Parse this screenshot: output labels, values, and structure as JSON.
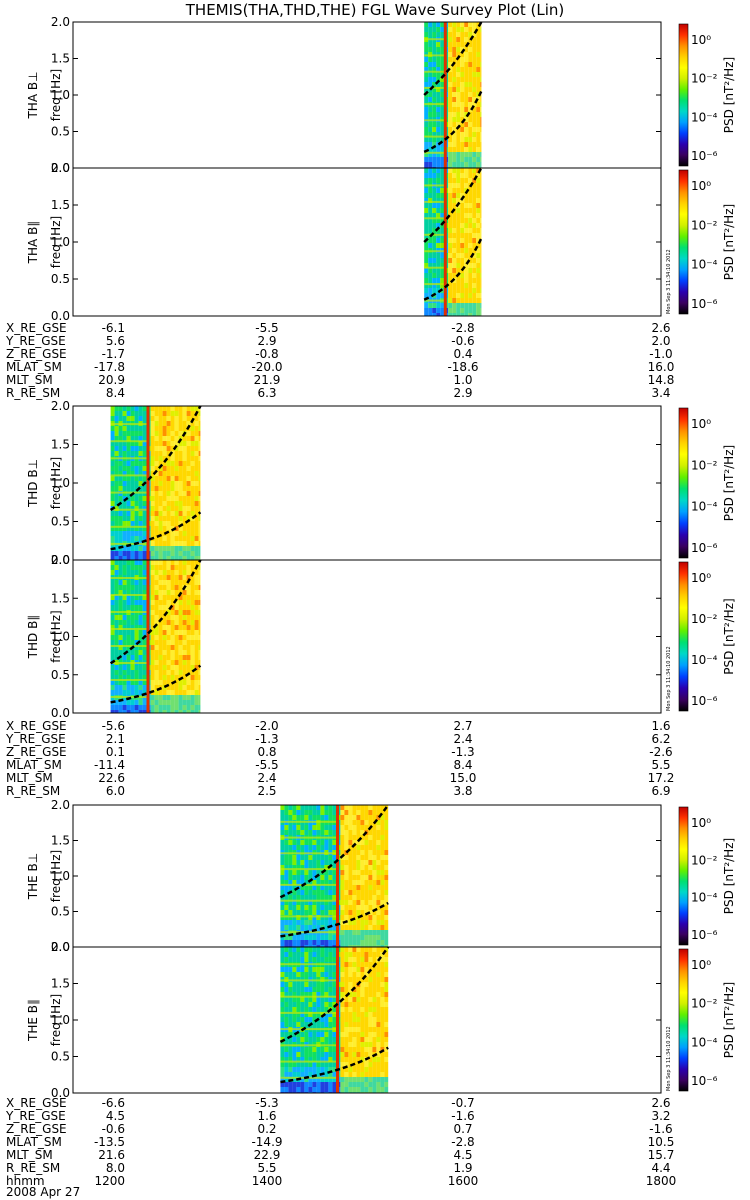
{
  "title": "THEMIS(THA,THD,THE) FGL Wave Survey Plot (Lin)",
  "colors": {
    "colorbar": [
      "#000000",
      "#3a0060",
      "#2a00b0",
      "#0040ff",
      "#00a0ff",
      "#00d8c8",
      "#00e070",
      "#60f000",
      "#d0f000",
      "#ffff00",
      "#ffd000",
      "#ff9000",
      "#ff3000",
      "#c00000"
    ],
    "dash": "#000000",
    "line": "#6688bb"
  },
  "colorbar": {
    "label": "PSD [nT²/Hz]",
    "ticks": [
      "10⁰",
      "10⁻²",
      "10⁻⁴",
      "10⁻⁶"
    ]
  },
  "stamp": "Mon Sep 3 11:34:10 2012",
  "chart_data": [
    {
      "type": "heatmap",
      "name": "THA B⊥",
      "ylabel_top": "THA B⊥",
      "ylabel_bottom": "freq [Hz]",
      "ylim": [
        0,
        2
      ],
      "yticks": [
        "0.0",
        "0.5",
        "1.0",
        "1.5",
        "2.0"
      ],
      "data_range_hhmm": [
        "1535",
        "1610"
      ],
      "bright_from_hhmm": "1548",
      "spike_hhmm": "1547",
      "lines": [
        {
          "start": 1.0,
          "end": 2.0
        },
        {
          "start": 0.22,
          "end": 1.05
        }
      ]
    },
    {
      "type": "heatmap",
      "name": "THA B∥",
      "ylabel_top": "THA B∥",
      "ylabel_bottom": "freq [Hz]",
      "ylim": [
        0,
        2
      ],
      "yticks": [
        "0.0",
        "0.5",
        "1.0",
        "1.5",
        "2.0"
      ],
      "data_range_hhmm": [
        "1535",
        "1610"
      ],
      "bright_from_hhmm": "1548",
      "spike_hhmm": "1547",
      "lines": [
        {
          "start": 1.0,
          "end": 2.0
        },
        {
          "start": 0.22,
          "end": 1.05
        }
      ]
    },
    {
      "type": "heatmap",
      "name": "THD B⊥",
      "ylabel_top": "THD B⊥",
      "ylabel_bottom": "freq [Hz]",
      "ylim": [
        0,
        2
      ],
      "yticks": [
        "0.0",
        "0.5",
        "1.0",
        "1.5",
        "2.0"
      ],
      "data_range_hhmm": [
        "1223",
        "1318"
      ],
      "bright_from_hhmm": "1246",
      "spike_hhmm": "1245",
      "lines": [
        {
          "start": 0.65,
          "end": 2.0
        },
        {
          "start": 0.14,
          "end": 0.62
        }
      ]
    },
    {
      "type": "heatmap",
      "name": "THD B∥",
      "ylabel_top": "THD B∥",
      "ylabel_bottom": "freq [Hz]",
      "ylim": [
        0,
        2
      ],
      "yticks": [
        "0.0",
        "0.5",
        "1.0",
        "1.5",
        "2.0"
      ],
      "data_range_hhmm": [
        "1223",
        "1318"
      ],
      "bright_from_hhmm": "1246",
      "spike_hhmm": "1245",
      "lines": [
        {
          "start": 0.65,
          "end": 2.0
        },
        {
          "start": 0.14,
          "end": 0.62
        }
      ]
    },
    {
      "type": "heatmap",
      "name": "THE B⊥",
      "ylabel_top": "THE B⊥",
      "ylabel_bottom": "freq [Hz]",
      "ylim": [
        0,
        2
      ],
      "yticks": [
        "0.0",
        "0.5",
        "1.0",
        "1.5",
        "2.0"
      ],
      "data_range_hhmm": [
        "1407",
        "1513"
      ],
      "bright_from_hhmm": "1442",
      "spike_hhmm": "1441",
      "lines": [
        {
          "start": 0.7,
          "end": 2.0
        },
        {
          "start": 0.15,
          "end": 0.62
        }
      ]
    },
    {
      "type": "heatmap",
      "name": "THE B∥",
      "ylabel_top": "THE B∥",
      "ylabel_bottom": "freq [Hz]",
      "ylim": [
        0,
        2
      ],
      "yticks": [
        "0.0",
        "0.5",
        "1.0",
        "1.5",
        "2.0"
      ],
      "data_range_hhmm": [
        "1407",
        "1513"
      ],
      "bright_from_hhmm": "1442",
      "spike_hhmm": "1441",
      "lines": [
        {
          "start": 0.7,
          "end": 2.0
        },
        {
          "start": 0.15,
          "end": 0.62
        }
      ]
    }
  ],
  "ephemeris": [
    {
      "rows": [
        {
          "label": "X_RE_GSE",
          "values": [
            "-6.1",
            "-5.5",
            "-2.8",
            "2.6"
          ]
        },
        {
          "label": "Y_RE_GSE",
          "values": [
            "5.6",
            "2.9",
            "-0.6",
            "2.0"
          ]
        },
        {
          "label": "Z_RE_GSE",
          "values": [
            "-1.7",
            "-0.8",
            "0.4",
            "-1.0"
          ]
        },
        {
          "label": "MLAT_SM",
          "values": [
            "-17.8",
            "-20.0",
            "-18.6",
            "16.0"
          ]
        },
        {
          "label": "MLT_SM",
          "values": [
            "20.9",
            "21.9",
            "1.0",
            "14.8"
          ]
        },
        {
          "label": "R_RE_SM",
          "values": [
            "8.4",
            "6.3",
            "2.9",
            "3.4"
          ]
        }
      ]
    },
    {
      "rows": [
        {
          "label": "X_RE_GSE",
          "values": [
            "-5.6",
            "-2.0",
            "2.7",
            "1.6"
          ]
        },
        {
          "label": "Y_RE_GSE",
          "values": [
            "2.1",
            "-1.3",
            "2.4",
            "6.2"
          ]
        },
        {
          "label": "Z_RE_GSE",
          "values": [
            "0.1",
            "0.8",
            "-1.3",
            "-2.6"
          ]
        },
        {
          "label": "MLAT_SM",
          "values": [
            "-11.4",
            "-5.5",
            "8.4",
            "5.5"
          ]
        },
        {
          "label": "MLT_SM",
          "values": [
            "22.6",
            "2.4",
            "15.0",
            "17.2"
          ]
        },
        {
          "label": "R_RE_SM",
          "values": [
            "6.0",
            "2.5",
            "3.8",
            "6.9"
          ]
        }
      ]
    },
    {
      "rows": [
        {
          "label": "X_RE_GSE",
          "values": [
            "-6.6",
            "-5.3",
            "-0.7",
            "2.6"
          ]
        },
        {
          "label": "Y_RE_GSE",
          "values": [
            "4.5",
            "1.6",
            "-1.6",
            "3.2"
          ]
        },
        {
          "label": "Z_RE_GSE",
          "values": [
            "-0.6",
            "0.2",
            "0.7",
            "-1.6"
          ]
        },
        {
          "label": "MLAT_SM",
          "values": [
            "-13.5",
            "-14.9",
            "-2.8",
            "10.5"
          ]
        },
        {
          "label": "MLT_SM",
          "values": [
            "21.6",
            "22.9",
            "4.5",
            "15.7"
          ]
        },
        {
          "label": "R_RE_SM",
          "values": [
            "8.0",
            "5.5",
            "1.9",
            "4.4"
          ]
        },
        {
          "label": "hhmm",
          "values": [
            "1200",
            "1400",
            "1600",
            "1800"
          ]
        }
      ]
    }
  ],
  "date": "2008 Apr 27"
}
